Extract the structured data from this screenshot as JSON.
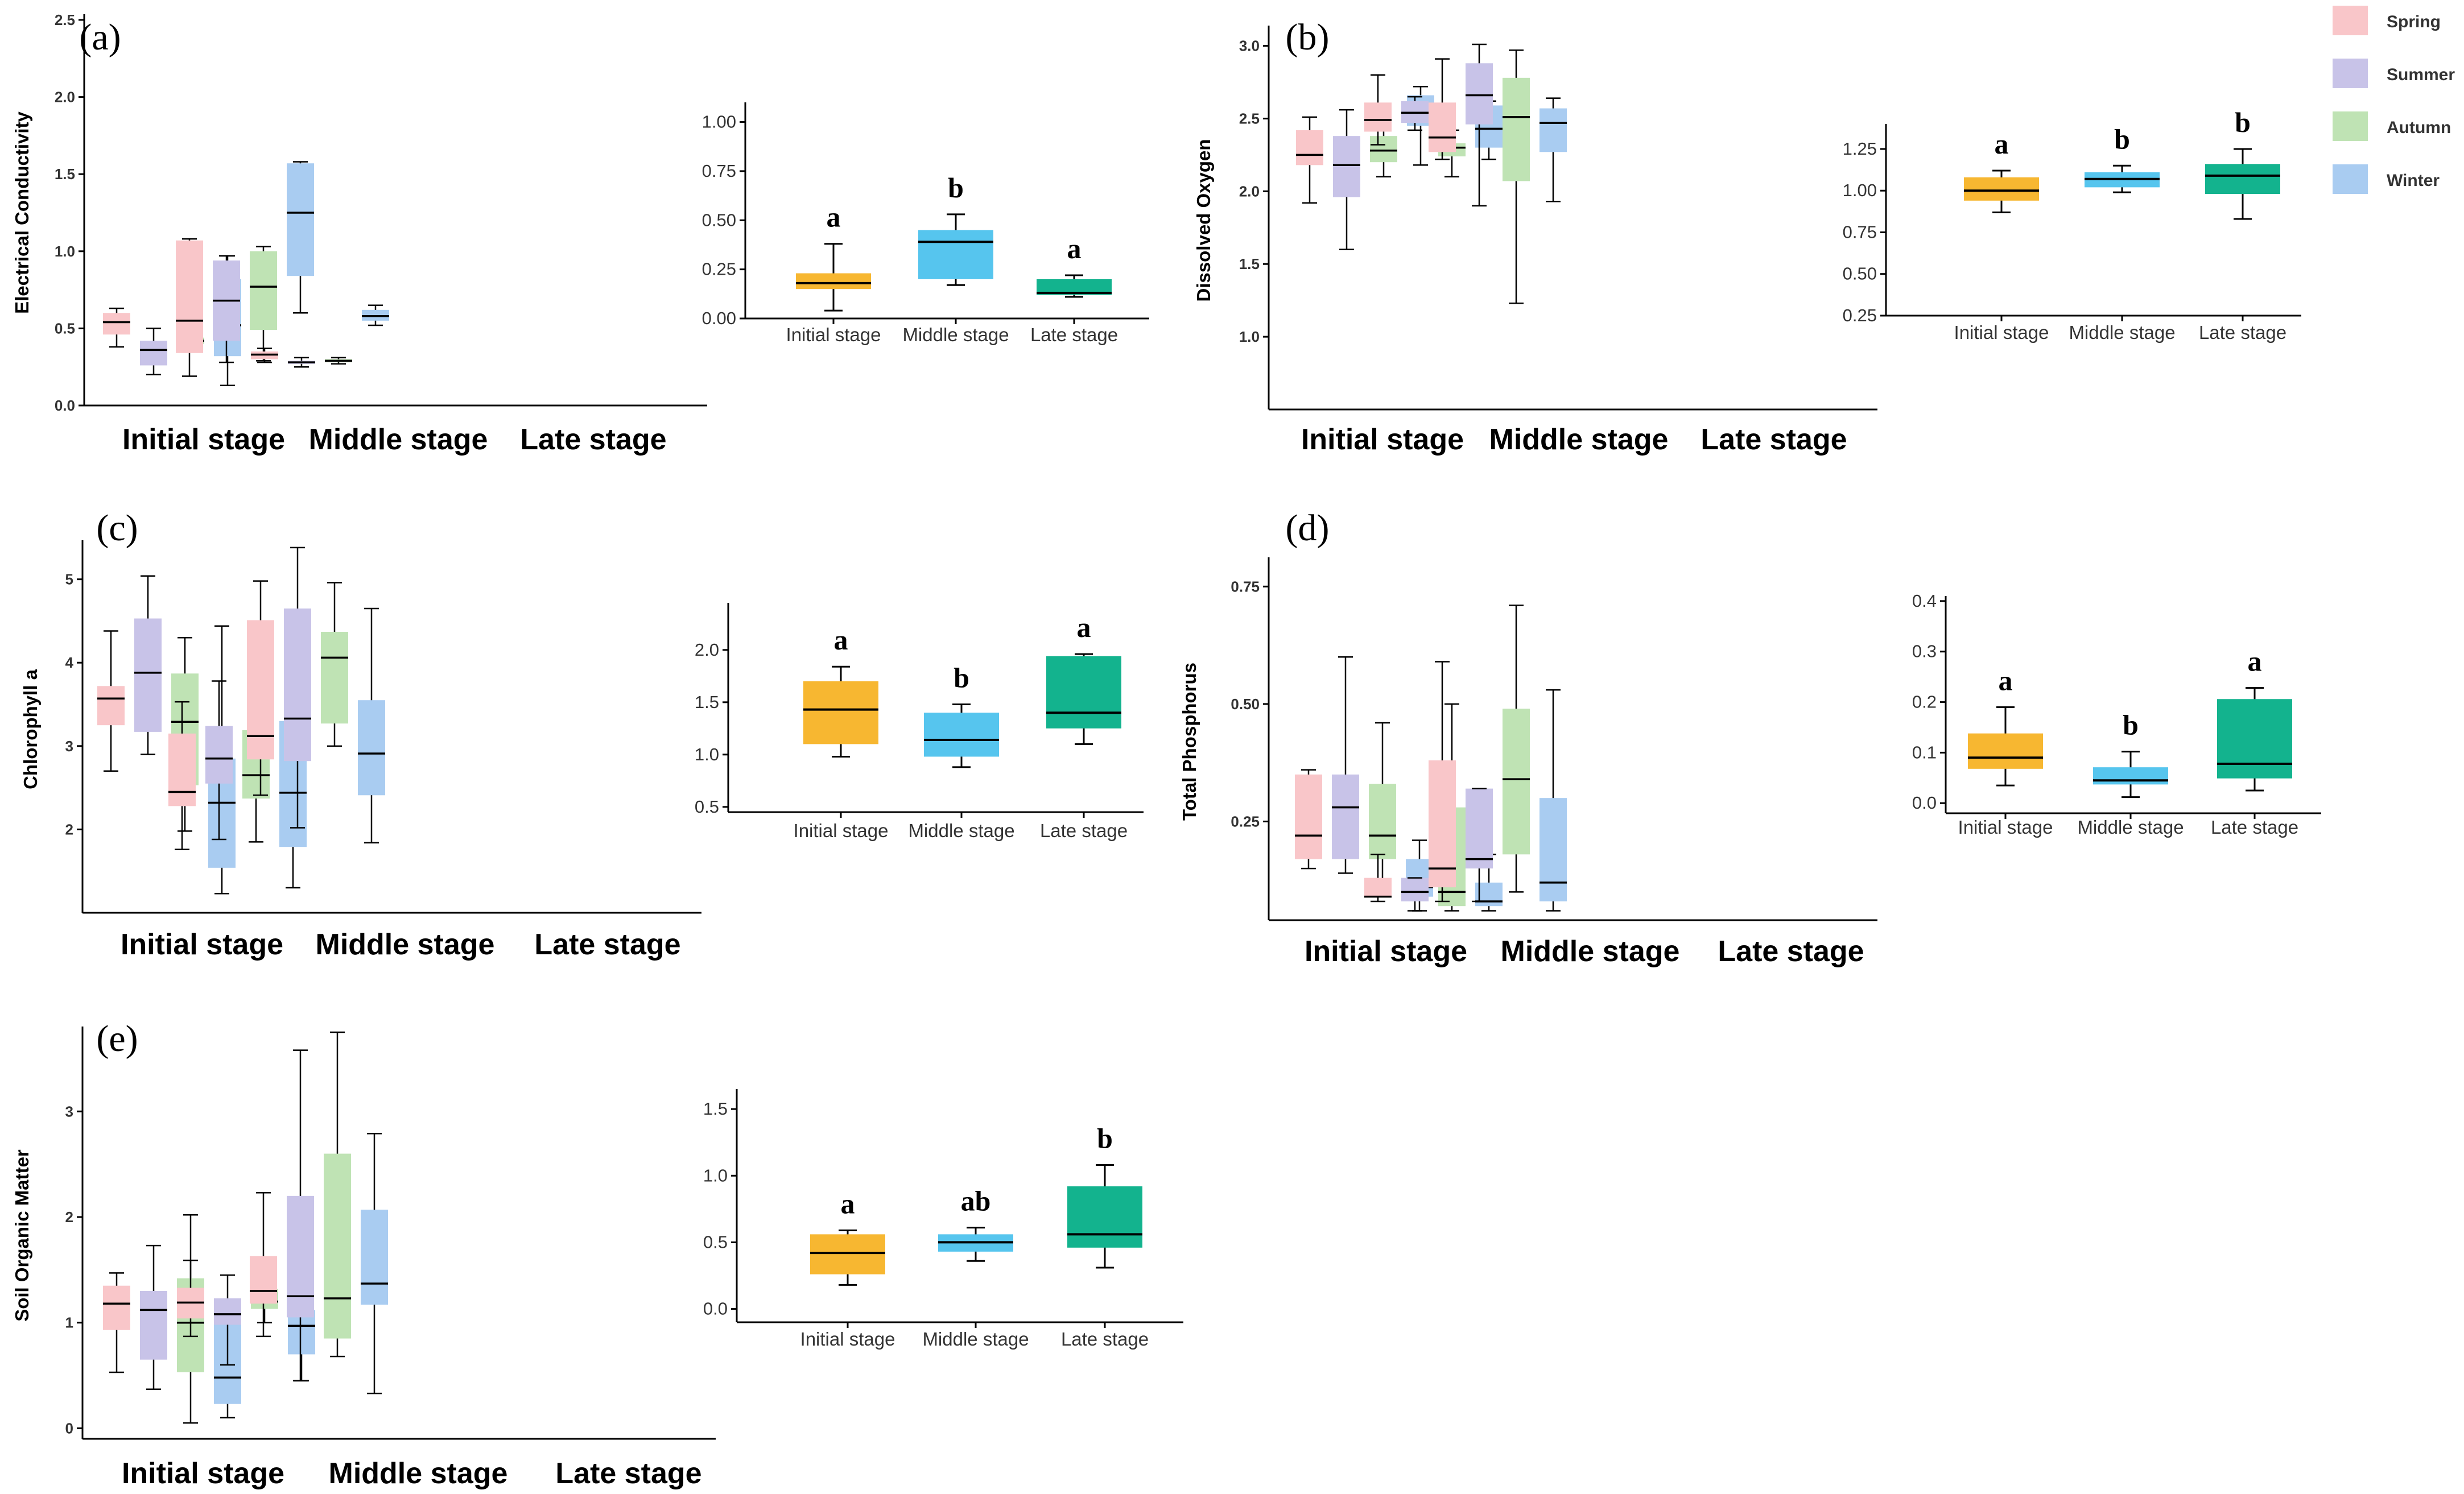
{
  "legend": [
    {
      "name": "Spring",
      "color": "#f9c6c9"
    },
    {
      "name": "Summer",
      "color": "#c8c3e8"
    },
    {
      "name": "Autumn",
      "color": "#bfe3b4"
    },
    {
      "name": "Winter",
      "color": "#a9ccf1"
    }
  ],
  "stage_colors": [
    "#f7b731",
    "#56c5ee",
    "#13b38e"
  ],
  "chart_data": [
    {
      "type": "boxplot",
      "panel": "(a)",
      "ylabel": "Electrical Conductivity",
      "groups": [
        "Initial stage",
        "Middle stage",
        "Late stage"
      ],
      "ylim": [
        0,
        2.5
      ],
      "yticks": [
        0.0,
        0.5,
        1.0,
        1.5,
        2.0,
        2.5
      ],
      "ytick_labels": [
        "0.0",
        "0.5",
        "1.0",
        "1.5",
        "2.0",
        "2.5"
      ],
      "boxes": [
        [
          [
            0.38,
            0.46,
            0.54,
            0.6,
            0.63
          ],
          [
            0.2,
            0.26,
            0.36,
            0.42,
            0.5
          ],
          [
            0.38,
            0.4,
            0.42,
            0.44,
            0.5
          ],
          [
            0.13,
            0.32,
            0.52,
            0.82,
            0.97
          ]
        ],
        [
          [
            0.19,
            0.34,
            0.55,
            1.07,
            1.08
          ],
          [
            0.28,
            0.42,
            0.68,
            0.94,
            0.97
          ],
          [
            0.29,
            0.49,
            0.77,
            1.0,
            1.03
          ],
          [
            0.6,
            0.84,
            1.25,
            1.57,
            1.58
          ]
        ],
        [
          [
            0.28,
            0.3,
            0.33,
            0.35,
            0.37
          ],
          [
            0.25,
            0.27,
            0.28,
            0.29,
            0.31
          ],
          [
            0.27,
            0.28,
            0.29,
            0.3,
            0.31
          ],
          [
            0.52,
            0.55,
            0.58,
            0.62,
            0.65
          ]
        ]
      ],
      "inset": {
        "categories": [
          "Initial stage",
          "Middle stage",
          "Late stage"
        ],
        "ylim": [
          0,
          1.1
        ],
        "yticks": [
          0.0,
          0.25,
          0.5,
          0.75,
          1.0
        ],
        "ytick_labels": [
          "0.00",
          "0.25",
          "0.50",
          "0.75",
          "1.00"
        ],
        "boxes": [
          [
            0.04,
            0.15,
            0.18,
            0.23,
            0.38
          ],
          [
            0.17,
            0.2,
            0.39,
            0.45,
            0.53
          ],
          [
            0.11,
            0.12,
            0.13,
            0.2,
            0.22
          ]
        ],
        "letters": [
          "a",
          "b",
          "a"
        ]
      }
    },
    {
      "type": "boxplot",
      "panel": "(b)",
      "ylabel": "Dissolved Oxygen",
      "groups": [
        "Initial stage",
        "Middle stage",
        "Late stage"
      ],
      "ylim": [
        0.5,
        3.1
      ],
      "yticks": [
        1.0,
        1.5,
        2.0,
        2.5,
        3.0
      ],
      "ytick_labels": [
        "1.0",
        "1.5",
        "2.0",
        "2.5",
        "3.0"
      ],
      "boxes": [
        [
          [
            1.92,
            2.18,
            2.25,
            2.42,
            2.51
          ],
          [
            1.6,
            1.96,
            2.18,
            2.38,
            2.56
          ],
          [
            2.1,
            2.2,
            2.28,
            2.38,
            2.5
          ],
          [
            2.18,
            2.45,
            2.56,
            2.66,
            2.72
          ]
        ],
        [
          [
            2.32,
            2.41,
            2.49,
            2.61,
            2.8
          ],
          [
            2.42,
            2.47,
            2.54,
            2.62,
            2.65
          ],
          [
            2.1,
            2.24,
            2.3,
            2.33,
            2.42
          ],
          [
            2.22,
            2.3,
            2.43,
            2.59,
            2.62
          ]
        ],
        [
          [
            2.22,
            2.27,
            2.37,
            2.61,
            2.91
          ],
          [
            1.9,
            2.46,
            2.66,
            2.88,
            3.01
          ],
          [
            1.23,
            2.07,
            2.51,
            2.78,
            2.97
          ],
          [
            1.93,
            2.27,
            2.47,
            2.57,
            2.64
          ]
        ]
      ],
      "inset": {
        "categories": [
          "Initial stage",
          "Middle stage",
          "Late stage"
        ],
        "ylim": [
          0.25,
          1.4
        ],
        "yticks": [
          0.25,
          0.5,
          0.75,
          1.0,
          1.25
        ],
        "ytick_labels": [
          "0.25",
          "0.50",
          "0.75",
          "1.00",
          "1.25"
        ],
        "boxes": [
          [
            0.87,
            0.94,
            1.0,
            1.08,
            1.12
          ],
          [
            0.99,
            1.02,
            1.07,
            1.11,
            1.15
          ],
          [
            0.83,
            0.98,
            1.09,
            1.16,
            1.25
          ]
        ],
        "letters": [
          "a",
          "b",
          "b"
        ]
      }
    },
    {
      "type": "boxplot",
      "panel": "(c)",
      "ylabel": "Chlorophyll a",
      "groups": [
        "Initial stage",
        "Middle stage",
        "Late stage"
      ],
      "ylim": [
        1.0,
        5.4
      ],
      "yticks": [
        2,
        3,
        4,
        5
      ],
      "ytick_labels": [
        "2",
        "3",
        "4",
        "5"
      ],
      "boxes": [
        [
          [
            2.7,
            3.25,
            3.57,
            3.72,
            4.38
          ],
          [
            2.9,
            3.17,
            3.88,
            4.53,
            5.04
          ],
          [
            1.98,
            2.53,
            3.29,
            3.87,
            4.3
          ],
          [
            1.23,
            1.54,
            2.32,
            2.85,
            4.44
          ]
        ],
        [
          [
            1.76,
            2.28,
            2.45,
            3.15,
            3.53
          ],
          [
            1.88,
            2.55,
            2.85,
            3.24,
            3.78
          ],
          [
            1.85,
            2.37,
            2.65,
            3.19,
            3.61
          ],
          [
            1.3,
            1.79,
            2.44,
            3.3,
            3.7
          ]
        ],
        [
          [
            2.41,
            2.84,
            3.12,
            4.51,
            4.98
          ],
          [
            2.02,
            2.82,
            3.33,
            4.65,
            5.38
          ],
          [
            3.0,
            3.27,
            4.06,
            4.37,
            4.96
          ],
          [
            1.84,
            2.41,
            2.91,
            3.55,
            4.65
          ]
        ]
      ],
      "inset": {
        "categories": [
          "Initial stage",
          "Middle stage",
          "Late stage"
        ],
        "ylim": [
          0.45,
          2.45
        ],
        "yticks": [
          0.5,
          1.0,
          1.5,
          2.0
        ],
        "ytick_labels": [
          "0.5",
          "1.0",
          "1.5",
          "2.0"
        ],
        "boxes": [
          [
            0.98,
            1.1,
            1.43,
            1.7,
            1.84
          ],
          [
            0.88,
            0.98,
            1.14,
            1.4,
            1.48
          ],
          [
            1.1,
            1.25,
            1.4,
            1.94,
            1.96
          ]
        ],
        "letters": [
          "a",
          "b",
          "a"
        ]
      }
    },
    {
      "type": "boxplot",
      "panel": "(d)",
      "ylabel": "Total Phosphorus",
      "groups": [
        "Initial stage",
        "Middle stage",
        "Late stage"
      ],
      "ylim": [
        0.04,
        0.8
      ],
      "yticks": [
        0.25,
        0.5,
        0.75
      ],
      "ytick_labels": [
        "0.25",
        "0.50",
        "0.75"
      ],
      "boxes": [
        [
          [
            0.15,
            0.17,
            0.22,
            0.35,
            0.36
          ],
          [
            0.14,
            0.17,
            0.28,
            0.35,
            0.6
          ],
          [
            0.1,
            0.17,
            0.22,
            0.33,
            0.46
          ],
          [
            0.06,
            0.09,
            0.11,
            0.17,
            0.21
          ]
        ],
        [
          [
            0.08,
            0.09,
            0.09,
            0.13,
            0.18
          ],
          [
            0.06,
            0.08,
            0.1,
            0.13,
            0.13
          ],
          [
            0.06,
            0.07,
            0.1,
            0.28,
            0.5
          ],
          [
            0.06,
            0.07,
            0.08,
            0.12,
            0.18
          ]
        ],
        [
          [
            0.08,
            0.11,
            0.15,
            0.38,
            0.59
          ],
          [
            0.08,
            0.15,
            0.17,
            0.32,
            0.32
          ],
          [
            0.1,
            0.18,
            0.34,
            0.49,
            0.71
          ],
          [
            0.06,
            0.08,
            0.12,
            0.3,
            0.53
          ]
        ]
      ],
      "inset": {
        "categories": [
          "Initial stage",
          "Middle stage",
          "Late stage"
        ],
        "ylim": [
          -0.02,
          0.41
        ],
        "yticks": [
          0.0,
          0.1,
          0.2,
          0.3,
          0.4
        ],
        "ytick_labels": [
          "0.0",
          "0.1",
          "0.2",
          "0.3",
          "0.4"
        ],
        "boxes": [
          [
            0.035,
            0.068,
            0.09,
            0.138,
            0.19
          ],
          [
            0.012,
            0.037,
            0.045,
            0.071,
            0.102
          ],
          [
            0.025,
            0.049,
            0.078,
            0.206,
            0.228
          ]
        ],
        "letters": [
          "a",
          "b",
          "a"
        ]
      }
    },
    {
      "type": "boxplot",
      "panel": "(e)",
      "ylabel": "Soil Organic Matter",
      "groups": [
        "Initial stage",
        "Middle stage",
        "Late stage"
      ],
      "ylim": [
        -0.1,
        3.75
      ],
      "yticks": [
        0,
        1,
        2,
        3
      ],
      "ytick_labels": [
        "0",
        "1",
        "2",
        "3"
      ],
      "boxes": [
        [
          [
            0.53,
            0.93,
            1.18,
            1.35,
            1.47
          ],
          [
            0.37,
            0.65,
            1.12,
            1.3,
            1.73
          ],
          [
            0.05,
            0.53,
            1.0,
            1.42,
            2.02
          ],
          [
            0.1,
            0.23,
            0.48,
            1.0,
            1.09
          ]
        ],
        [
          [
            0.87,
            1.04,
            1.19,
            1.33,
            1.59
          ],
          [
            0.6,
            0.98,
            1.08,
            1.23,
            1.45
          ],
          [
            1.0,
            1.13,
            1.2,
            1.32,
            1.48
          ],
          [
            0.45,
            0.7,
            0.97,
            1.12,
            1.45
          ]
        ],
        [
          [
            0.87,
            1.18,
            1.3,
            1.63,
            2.23
          ],
          [
            0.45,
            1.05,
            1.25,
            2.2,
            3.58
          ],
          [
            0.68,
            0.85,
            1.23,
            2.6,
            3.75
          ],
          [
            0.33,
            1.17,
            1.37,
            2.07,
            2.79
          ]
        ]
      ],
      "inset": {
        "categories": [
          "Initial stage",
          "Middle stage",
          "Late stage"
        ],
        "ylim": [
          -0.1,
          1.65
        ],
        "yticks": [
          0.0,
          0.5,
          1.0,
          1.5
        ],
        "ytick_labels": [
          "0.0",
          "0.5",
          "1.0",
          "1.5"
        ],
        "boxes": [
          [
            0.18,
            0.26,
            0.42,
            0.56,
            0.59
          ],
          [
            0.36,
            0.43,
            0.5,
            0.56,
            0.61
          ],
          [
            0.31,
            0.46,
            0.56,
            0.92,
            1.08
          ]
        ],
        "letters": [
          "a",
          "ab",
          "b"
        ]
      }
    }
  ]
}
